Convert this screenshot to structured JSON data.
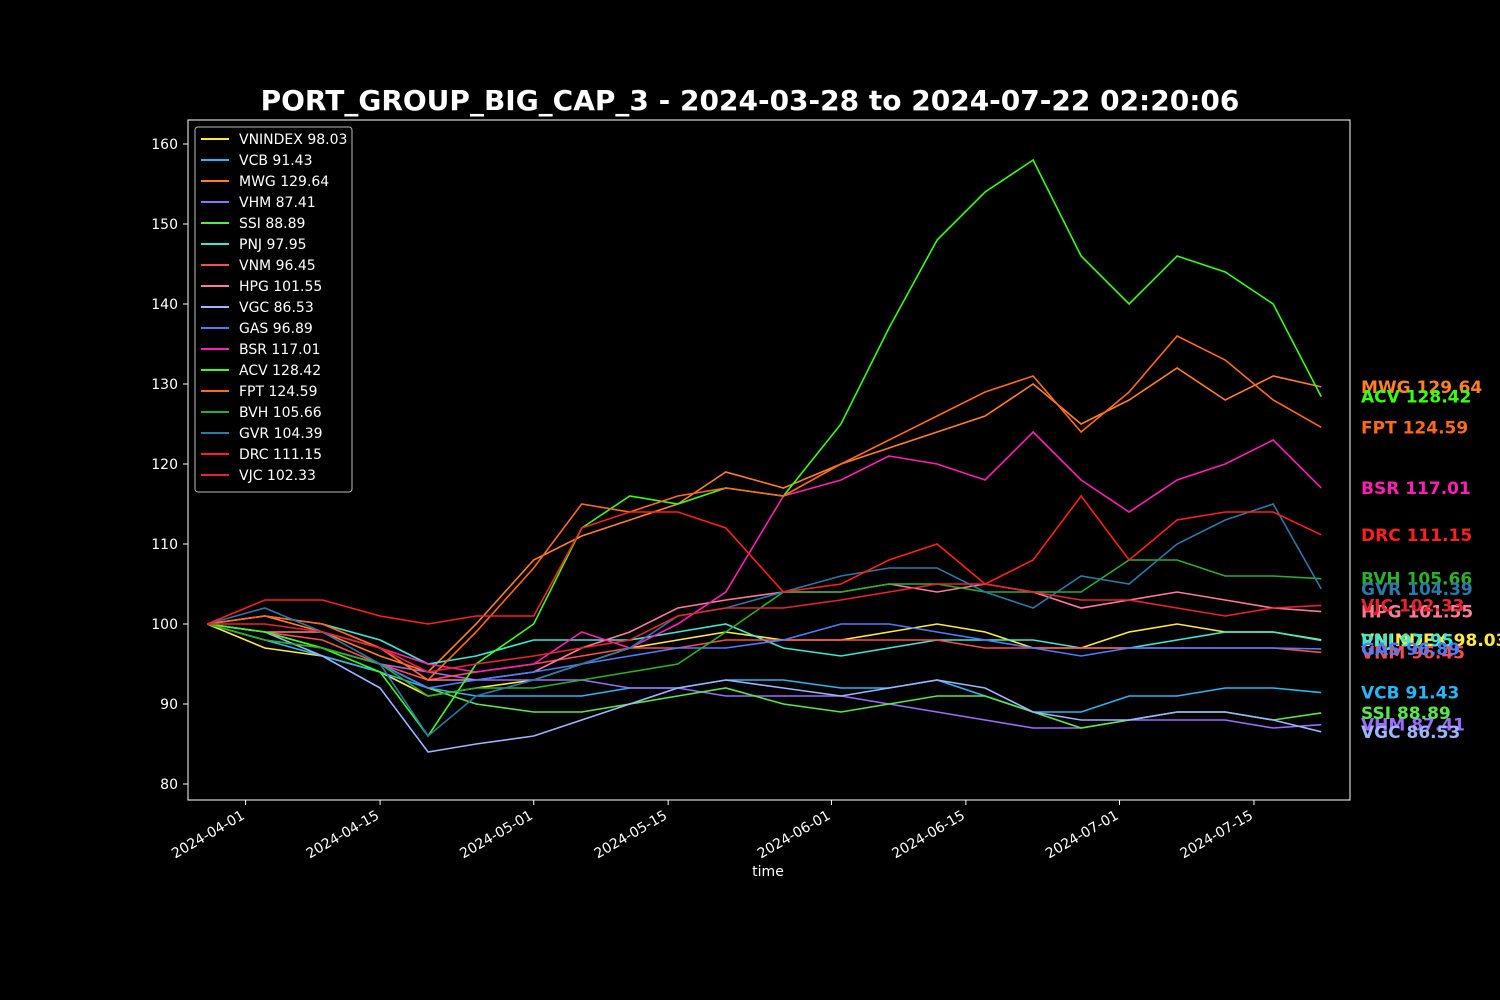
{
  "chart_data": {
    "type": "line",
    "title": "PORT_GROUP_BIG_CAP_3 - 2024-03-28 to 2024-07-22 02:20:06",
    "xlabel": "time",
    "ylabel": "",
    "xlim": [
      "2024-03-26",
      "2024-07-25"
    ],
    "ylim": [
      78,
      163
    ],
    "x_ticks": [
      "2024-04-01",
      "2024-04-15",
      "2024-05-01",
      "2024-05-15",
      "2024-06-01",
      "2024-06-15",
      "2024-07-01",
      "2024-07-15"
    ],
    "y_ticks": [
      80,
      90,
      100,
      110,
      120,
      130,
      140,
      150,
      160
    ],
    "legend_position": "top-left",
    "background": "#000000",
    "x": [
      "2024-03-28",
      "2024-04-03",
      "2024-04-09",
      "2024-04-15",
      "2024-04-20",
      "2024-04-25",
      "2024-05-01",
      "2024-05-06",
      "2024-05-11",
      "2024-05-16",
      "2024-05-21",
      "2024-05-27",
      "2024-06-02",
      "2024-06-07",
      "2024-06-12",
      "2024-06-17",
      "2024-06-22",
      "2024-06-27",
      "2024-07-02",
      "2024-07-07",
      "2024-07-12",
      "2024-07-17",
      "2024-07-22"
    ],
    "series": [
      {
        "name": "VNINDEX 98.03",
        "label": "VNINDEX 98.03",
        "color": "#ffeb3b",
        "values": [
          100,
          97,
          96,
          94,
          91,
          92,
          93,
          95,
          97,
          98,
          99,
          98,
          98,
          99,
          100,
          99,
          97,
          97,
          99,
          100,
          99,
          99,
          98.03
        ]
      },
      {
        "name": "VCB 91.43",
        "label": "VCB 91.43",
        "color": "#29b6f6",
        "values": [
          100,
          98,
          96,
          94,
          92,
          91,
          91,
          91,
          92,
          92,
          93,
          93,
          92,
          92,
          93,
          91,
          89,
          89,
          91,
          91,
          92,
          92,
          91.43
        ]
      },
      {
        "name": "MWG 129.64",
        "label": "MWG 129.64",
        "color": "#ff7f2a",
        "values": [
          100,
          101,
          99,
          96,
          94,
          100,
          108,
          111,
          113,
          115,
          119,
          117,
          120,
          122,
          124,
          126,
          130,
          125,
          128,
          132,
          128,
          131,
          129.64
        ]
      },
      {
        "name": "VHM 87.41",
        "label": "VHM 87.41",
        "color": "#9c6cff",
        "values": [
          100,
          99,
          97,
          95,
          94,
          93,
          93,
          93,
          92,
          92,
          91,
          91,
          91,
          90,
          89,
          88,
          87,
          87,
          88,
          88,
          88,
          87,
          87.41
        ]
      },
      {
        "name": "SSI 88.89",
        "label": "SSI 88.89",
        "color": "#58e84a",
        "values": [
          100,
          98,
          97,
          95,
          92,
          90,
          89,
          89,
          90,
          91,
          92,
          90,
          89,
          90,
          91,
          91,
          89,
          87,
          88,
          89,
          89,
          88,
          88.89
        ]
      },
      {
        "name": "PNJ 97.95",
        "label": "PNJ 97.95",
        "color": "#3de8d5",
        "values": [
          100,
          101,
          100,
          98,
          95,
          96,
          98,
          98,
          98,
          99,
          100,
          97,
          96,
          97,
          98,
          98,
          98,
          97,
          97,
          98,
          99,
          99,
          97.95
        ]
      },
      {
        "name": "VNM 96.45",
        "label": "VNM 96.45",
        "color": "#ff4d4d",
        "values": [
          100,
          99,
          98,
          95,
          93,
          94,
          95,
          96,
          97,
          97,
          98,
          98,
          98,
          98,
          98,
          97,
          97,
          97,
          97,
          97,
          97,
          97,
          96.45
        ]
      },
      {
        "name": "HPG 101.55",
        "label": "HPG 101.55",
        "color": "#ff7a9c",
        "values": [
          100,
          99,
          99,
          97,
          93,
          93,
          94,
          97,
          99,
          102,
          103,
          104,
          104,
          105,
          104,
          105,
          104,
          102,
          103,
          104,
          103,
          102,
          101.55
        ]
      },
      {
        "name": "VGC 86.53",
        "label": "VGC 86.53",
        "color": "#9db4ff",
        "values": [
          100,
          99,
          96,
          92,
          84,
          85,
          86,
          88,
          90,
          92,
          93,
          92,
          91,
          92,
          93,
          92,
          89,
          88,
          88,
          89,
          89,
          88,
          86.53
        ]
      },
      {
        "name": "GAS 96.89",
        "label": "GAS 96.89",
        "color": "#4a7dff",
        "values": [
          100,
          99,
          97,
          95,
          92,
          93,
          94,
          95,
          96,
          97,
          97,
          98,
          100,
          100,
          99,
          98,
          97,
          96,
          97,
          97,
          97,
          97,
          96.89
        ]
      },
      {
        "name": "BSR 117.01",
        "label": "BSR 117.01",
        "color": "#ff1fb4",
        "values": [
          100,
          101,
          100,
          97,
          95,
          94,
          95,
          99,
          97,
          100,
          104,
          116,
          118,
          121,
          120,
          118,
          124,
          118,
          114,
          118,
          120,
          123,
          117.01
        ]
      },
      {
        "name": "ACV 128.42",
        "label": "ACV 128.42",
        "color": "#39ff14",
        "values": [
          100,
          99,
          97,
          94,
          86,
          95,
          100,
          112,
          116,
          115,
          117,
          116,
          125,
          137,
          148,
          154,
          158,
          146,
          140,
          146,
          144,
          140,
          128.42
        ]
      },
      {
        "name": "FPT 124.59",
        "label": "FPT 124.59",
        "color": "#ff6a1a",
        "values": [
          100,
          101,
          100,
          97,
          93,
          99,
          107,
          115,
          114,
          116,
          117,
          116,
          120,
          123,
          126,
          129,
          131,
          124,
          129,
          136,
          133,
          128,
          124.59
        ]
      },
      {
        "name": "BVH 105.66",
        "label": "BVH 105.66",
        "color": "#2bb02b",
        "values": [
          100,
          98,
          97,
          95,
          91,
          92,
          92,
          93,
          94,
          95,
          99,
          104,
          104,
          105,
          105,
          104,
          104,
          104,
          108,
          108,
          106,
          106,
          105.66
        ]
      },
      {
        "name": "GVR 104.39",
        "label": "GVR 104.39",
        "color": "#2a79a8",
        "values": [
          100,
          102,
          99,
          95,
          86,
          91,
          93,
          95,
          97,
          101,
          102,
          104,
          106,
          107,
          107,
          104,
          102,
          106,
          105,
          110,
          113,
          115,
          104.39
        ]
      },
      {
        "name": "DRC 111.15",
        "label": "DRC 111.15",
        "color": "#ff1f1f",
        "values": [
          100,
          103,
          103,
          101,
          100,
          101,
          101,
          112,
          114,
          114,
          112,
          104,
          105,
          108,
          110,
          105,
          108,
          116,
          108,
          113,
          114,
          114,
          111.15
        ]
      },
      {
        "name": "VJC 102.33",
        "label": "VJC 102.33",
        "color": "#e8242f",
        "values": [
          100,
          100,
          99,
          97,
          94,
          95,
          96,
          97,
          98,
          101,
          102,
          102,
          103,
          104,
          105,
          105,
          104,
          103,
          103,
          102,
          101,
          102,
          102.33
        ]
      }
    ]
  }
}
